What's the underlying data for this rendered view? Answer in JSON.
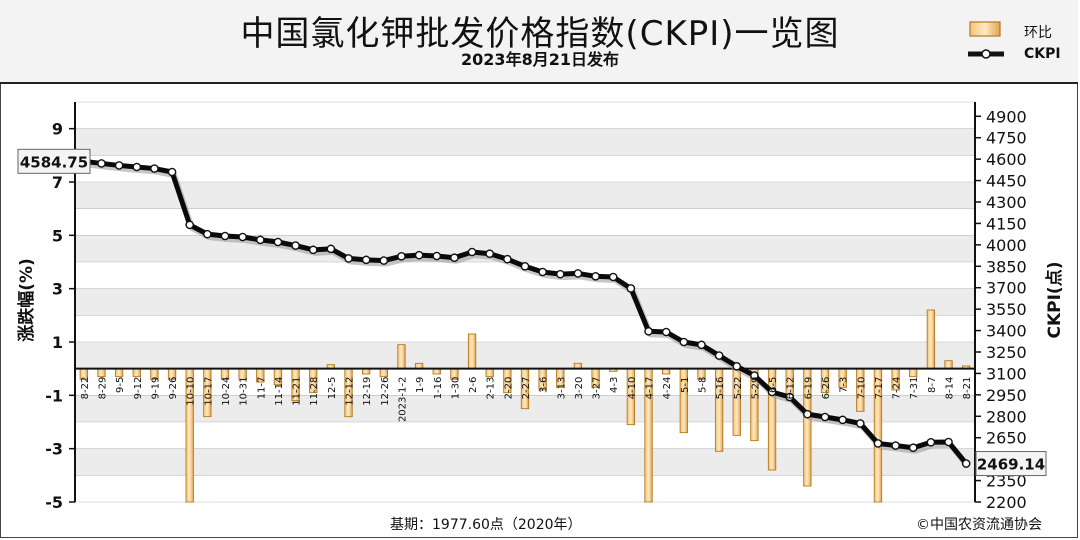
{
  "chart_data": {
    "type": "bar+line",
    "title": "中国氯化钾批发价格指数(CKPI)一览图",
    "subtitle": "2023年8月21日发布",
    "ylabel_left": "涨跌幅(%)",
    "ylabel_right": "CKPI(点)",
    "ylim_left": [
      -5,
      10
    ],
    "yticks_left": [
      9,
      7,
      5,
      3,
      1,
      -1,
      -3,
      -5
    ],
    "ylim_right": [
      2200,
      5000
    ],
    "yticks_right": [
      4900,
      4750,
      4600,
      4450,
      4300,
      4150,
      4000,
      3850,
      3700,
      3550,
      3400,
      3250,
      3100,
      2950,
      2800,
      2650,
      2500,
      2350,
      2200
    ],
    "grid": true,
    "legend_placement": "top-right",
    "legend": {
      "bar": "环比",
      "line": "CKPI"
    },
    "categories": [
      "8-22",
      "8-29",
      "9-5",
      "9-12",
      "9-19",
      "9-26",
      "10-10",
      "10-17",
      "10-24",
      "10-31",
      "11-7",
      "11-14",
      "11-21",
      "11-28",
      "12-5",
      "12-12",
      "12-19",
      "12-26",
      "2023-1-2",
      "1-9",
      "1-16",
      "1-30",
      "2-6",
      "2-13",
      "2-20",
      "2-27",
      "3-6",
      "3-13",
      "3-20",
      "3-27",
      "4-3",
      "4-10",
      "4-17",
      "4-24",
      "5-1",
      "5-8",
      "5-16",
      "5-22",
      "5-29",
      "6-5",
      "6-12",
      "6-19",
      "6-26",
      "7-3",
      "7-10",
      "7-17",
      "7-24",
      "7-31",
      "8-7",
      "8-14",
      "8-21"
    ],
    "series": [
      {
        "name": "环比",
        "type": "bar",
        "values": [
          -0.4,
          -0.3,
          -0.3,
          -0.3,
          -0.4,
          -0.4,
          -5.0,
          -1.8,
          -0.4,
          -0.4,
          -0.5,
          -0.6,
          -1.2,
          -0.9,
          0.15,
          -1.8,
          -0.2,
          -0.3,
          0.9,
          0.2,
          -0.2,
          -0.4,
          1.3,
          -0.3,
          -0.9,
          -1.5,
          -0.8,
          -0.7,
          0.2,
          -0.7,
          -0.1,
          -2.1,
          -5.0,
          -0.2,
          -2.4,
          -0.4,
          -3.1,
          -2.5,
          -2.7,
          -3.8,
          -1.2,
          -4.4,
          -0.9,
          -0.7,
          -1.6,
          -5.0,
          -0.8,
          -0.3,
          2.2,
          0.3,
          0.1
        ]
      },
      {
        "name": "CKPI",
        "type": "line",
        "values": [
          4584.75,
          4570,
          4556,
          4545,
          4534,
          4510,
          4140,
          4075,
          4062,
          4055,
          4035,
          4020,
          3995,
          3965,
          3972,
          3905,
          3895,
          3890,
          3920,
          3928,
          3922,
          3910,
          3950,
          3938,
          3900,
          3850,
          3810,
          3795,
          3800,
          3780,
          3775,
          3695,
          3395,
          3390,
          3320,
          3300,
          3225,
          3150,
          3085,
          2970,
          2935,
          2815,
          2795,
          2775,
          2750,
          2610,
          2595,
          2580,
          2618,
          2620,
          2469.14
        ]
      }
    ],
    "annotations": {
      "start_label": "4584.75",
      "end_label": "2469.14"
    },
    "footer_left": "基期：1977.60点（2020年）",
    "footer_right": "©中国农资流通协会"
  }
}
